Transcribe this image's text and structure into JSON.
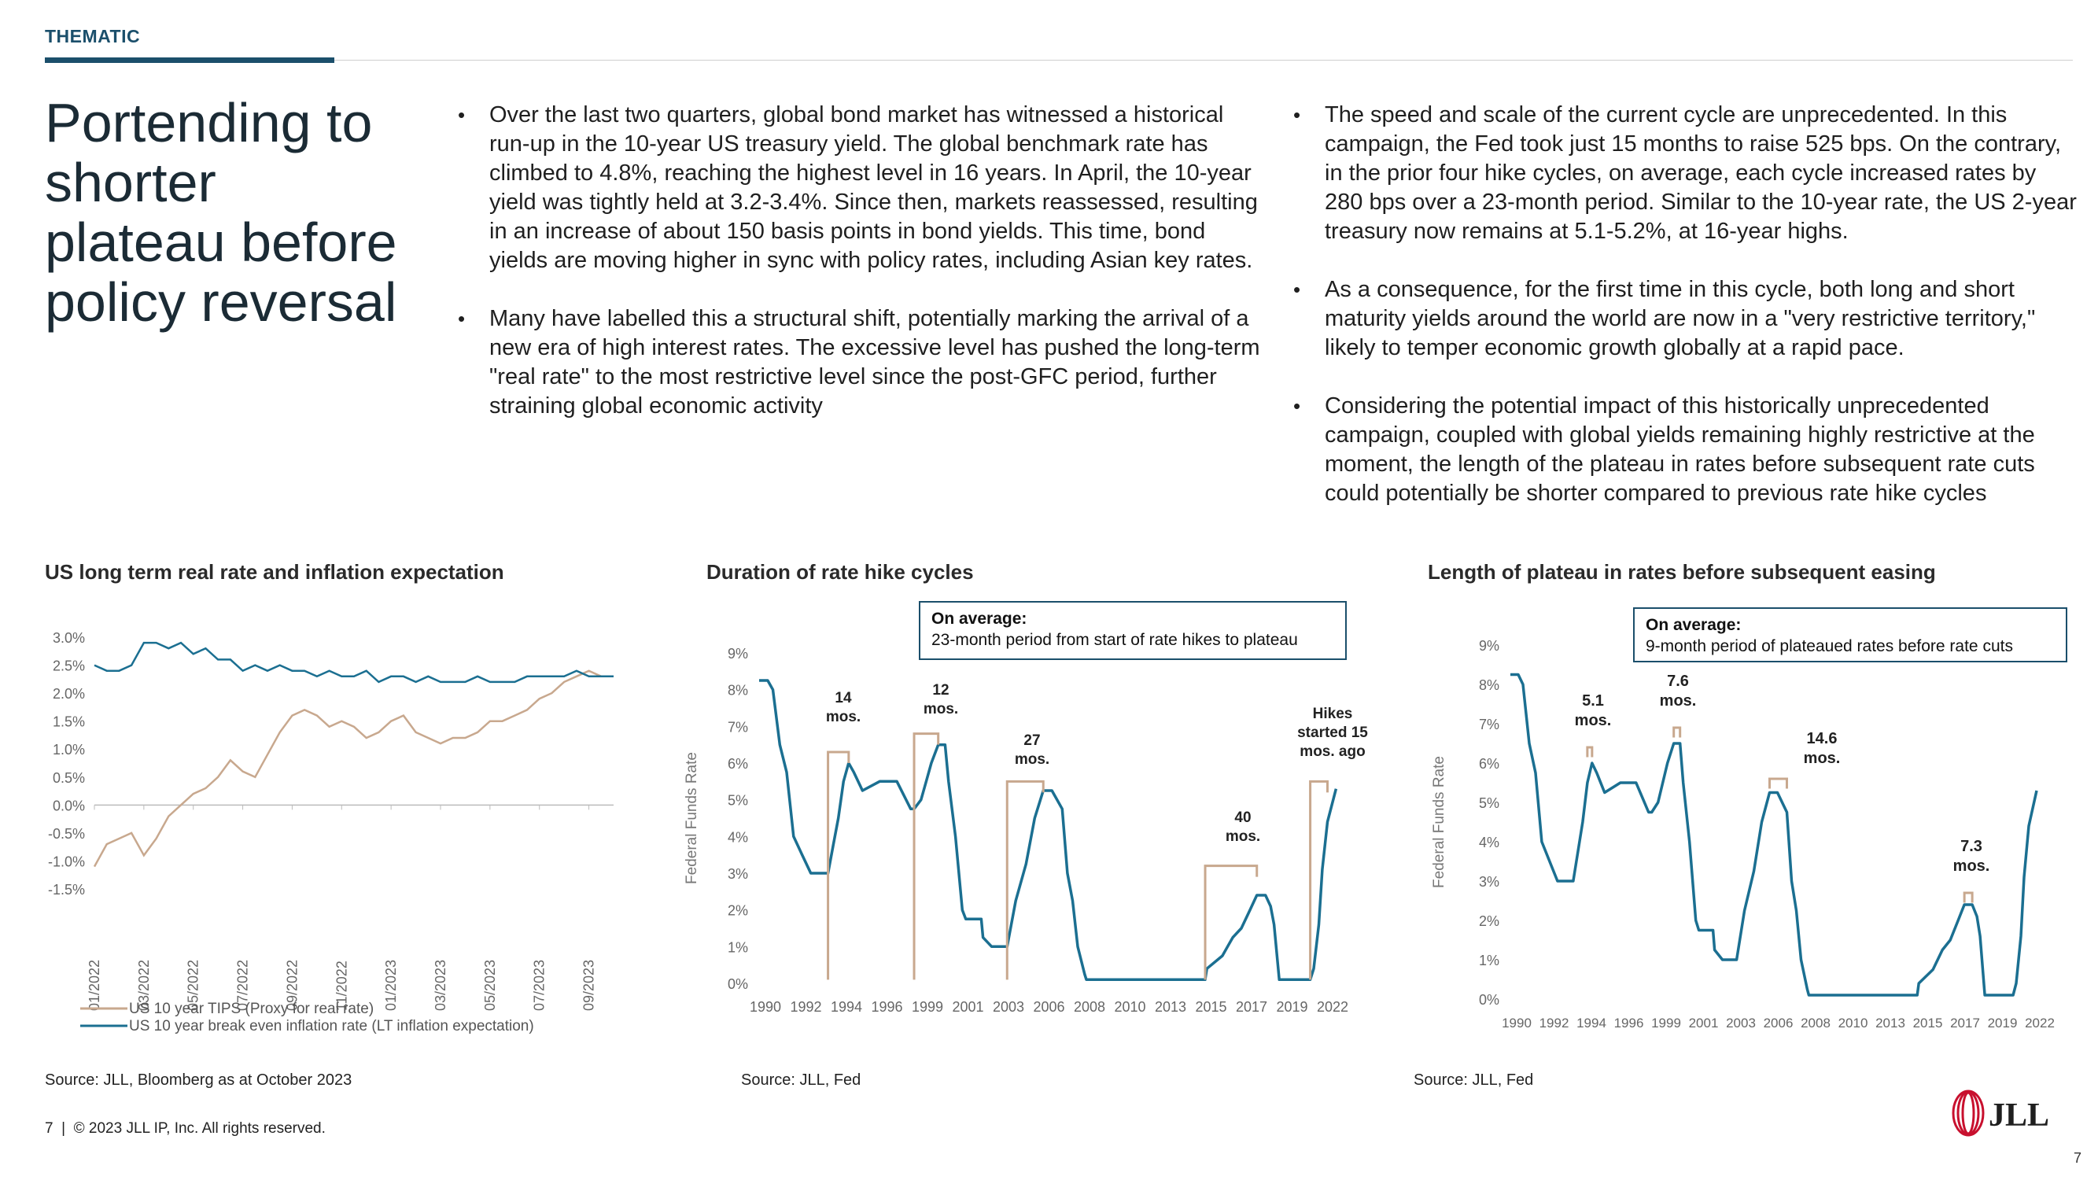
{
  "section_tag": "THEMATIC",
  "headline": "Portending to shorter plateau before policy reversal",
  "bullets_left": [
    "Over the last two quarters, global bond market has witnessed a historical run-up in the 10-year US treasury yield. The global benchmark rate has climbed to 4.8%, reaching the highest level in 16 years. In April, the 10-year yield was tightly held at 3.2-3.4%. Since then, markets reassessed, resulting in an increase of about 150 basis points in bond yields. This time, bond yields are moving higher in sync with policy rates, including Asian key rates.",
    "Many have labelled this a structural shift, potentially marking the arrival of a new era of high interest rates. The excessive level has pushed the long-term \"real rate\" to the most restrictive level since the post-GFC period, further straining global economic activity"
  ],
  "bullets_right": [
    "The speed and scale of the current cycle are unprecedented. In this campaign, the Fed took just 15 months to raise 525 bps. On the contrary, in the prior four hike cycles, on average, each cycle increased rates by 280 bps over a 23-month period. Similar to the 10-year rate, the US 2-year treasury now remains at 5.1-5.2%, at 16-year highs.",
    "As a consequence, for the first time in this cycle, both long and short maturity yields around the world are now in a \"very restrictive territory,\" likely to temper economic growth globally at a rapid pace.",
    "Considering the potential impact of this historically unprecedented campaign, coupled with global yields remaining highly restrictive at the moment, the length of the plateau in rates before subsequent rate cuts could potentially be shorter compared to previous rate hike cycles"
  ],
  "colors": {
    "navy": "#1b4f6b",
    "teal": "#1b6f91",
    "tan": "#c8a88e",
    "red": "#c8102e"
  },
  "chart_data": [
    {
      "type": "line",
      "title": "US long term real rate and inflation expectation",
      "x_ticks": [
        "01/2022",
        "03/2022",
        "05/2022",
        "07/2022",
        "09/2022",
        "11/2022",
        "01/2023",
        "03/2023",
        "05/2023",
        "07/2023",
        "09/2023"
      ],
      "y_ticks": [
        "3.0%",
        "2.5%",
        "2.0%",
        "1.5%",
        "1.0%",
        "0.5%",
        "0.0%",
        "-0.5%",
        "-1.0%",
        "-1.5%"
      ],
      "ylim": [
        -1.5,
        3.0
      ],
      "series": [
        {
          "name": "US 10 year TIPS (Proxy for real rate)",
          "color": "#c8a88e",
          "x": [
            0,
            0.5,
            1,
            1.5,
            2,
            2.5,
            3,
            3.5,
            4,
            4.5,
            5,
            5.5,
            6,
            6.5,
            7,
            7.5,
            8,
            8.5,
            9,
            9.5,
            10,
            10.5,
            11,
            11.5,
            12,
            12.5,
            13,
            13.5,
            14,
            14.5,
            15,
            15.5,
            16,
            16.5,
            17,
            17.5,
            18,
            18.5,
            19,
            19.5,
            20,
            20.5,
            21
          ],
          "values": [
            -1.1,
            -0.7,
            -0.6,
            -0.5,
            -0.9,
            -0.6,
            -0.2,
            0.0,
            0.2,
            0.3,
            0.5,
            0.8,
            0.6,
            0.5,
            0.9,
            1.3,
            1.6,
            1.7,
            1.6,
            1.4,
            1.5,
            1.4,
            1.2,
            1.3,
            1.5,
            1.6,
            1.3,
            1.2,
            1.1,
            1.2,
            1.2,
            1.3,
            1.5,
            1.5,
            1.6,
            1.7,
            1.9,
            2.0,
            2.2,
            2.3,
            2.4,
            2.3,
            2.3
          ]
        },
        {
          "name": "US 10 year break even inflation rate (LT inflation expectation)",
          "color": "#1b6f91",
          "x": [
            0,
            0.5,
            1,
            1.5,
            2,
            2.5,
            3,
            3.5,
            4,
            4.5,
            5,
            5.5,
            6,
            6.5,
            7,
            7.5,
            8,
            8.5,
            9,
            9.5,
            10,
            10.5,
            11,
            11.5,
            12,
            12.5,
            13,
            13.5,
            14,
            14.5,
            15,
            15.5,
            16,
            16.5,
            17,
            17.5,
            18,
            18.5,
            19,
            19.5,
            20,
            20.5,
            21
          ],
          "values": [
            2.5,
            2.4,
            2.4,
            2.5,
            2.9,
            2.9,
            2.8,
            2.9,
            2.7,
            2.8,
            2.6,
            2.6,
            2.4,
            2.5,
            2.4,
            2.5,
            2.4,
            2.4,
            2.3,
            2.4,
            2.3,
            2.3,
            2.4,
            2.2,
            2.3,
            2.3,
            2.2,
            2.3,
            2.2,
            2.2,
            2.2,
            2.3,
            2.2,
            2.2,
            2.2,
            2.3,
            2.3,
            2.3,
            2.3,
            2.4,
            2.3,
            2.3,
            2.3
          ]
        }
      ]
    },
    {
      "type": "line",
      "title": "Duration of rate hike cycles",
      "ylabel": "Federal Funds Rate",
      "x_ticks": [
        "1990",
        "1992",
        "1994",
        "1996",
        "1999",
        "2001",
        "2003",
        "2006",
        "2008",
        "2010",
        "2013",
        "2015",
        "2017",
        "2019",
        "2022"
      ],
      "y_ticks": [
        "9%",
        "8%",
        "7%",
        "6%",
        "5%",
        "4%",
        "3%",
        "2%",
        "1%",
        "0%"
      ],
      "ylim": [
        0,
        9
      ],
      "xlim": [
        1990,
        2023.8
      ],
      "series": [
        {
          "name": "",
          "color": "#1b6f91",
          "x": [
            1990,
            1990.5,
            1990.8,
            1991.2,
            1991.6,
            1992.0,
            1992.5,
            1993.0,
            1994.0,
            1994.3,
            1994.6,
            1994.9,
            1995.2,
            1995.5,
            1996.0,
            1997.0,
            1998.0,
            1998.8,
            1999.0,
            1999.4,
            1999.7,
            2000.0,
            2000.4,
            2000.8,
            2001.0,
            2001.4,
            2001.8,
            2002.0,
            2002.9,
            2003.0,
            2003.5,
            2004.4,
            2004.9,
            2005.5,
            2006.0,
            2006.5,
            2007.0,
            2007.6,
            2007.9,
            2008.2,
            2008.5,
            2008.9,
            2009.0,
            2015.9,
            2016.0,
            2016.9,
            2017.2,
            2017.5,
            2018.0,
            2018.5,
            2018.9,
            2019.4,
            2019.7,
            2019.9,
            2020.2,
            2022.0,
            2022.2,
            2022.5,
            2022.7,
            2023.0,
            2023.5
          ],
          "values": [
            8.25,
            8.25,
            8.0,
            6.5,
            5.75,
            4.0,
            3.5,
            3.0,
            3.0,
            3.75,
            4.5,
            5.5,
            6.0,
            5.75,
            5.25,
            5.5,
            5.5,
            4.75,
            4.75,
            5.0,
            5.5,
            6.0,
            6.5,
            6.5,
            5.5,
            4.0,
            2.0,
            1.75,
            1.75,
            1.25,
            1.0,
            1.0,
            2.25,
            3.25,
            4.5,
            5.25,
            5.25,
            4.75,
            3.0,
            2.25,
            1.0,
            0.25,
            0.1,
            0.1,
            0.4,
            0.75,
            1.0,
            1.25,
            1.5,
            2.0,
            2.4,
            2.4,
            2.1,
            1.6,
            0.1,
            0.1,
            0.4,
            1.6,
            3.1,
            4.4,
            5.3
          ]
        }
      ],
      "annotations": [
        "14 mos.",
        "12 mos.",
        "27 mos.",
        "40 mos.",
        "Hikes started 15 mos. ago"
      ],
      "callout": {
        "title": "On average:",
        "text": "23-month period from start of rate hikes to plateau"
      }
    },
    {
      "type": "line",
      "title": "Length of plateau in rates before subsequent easing",
      "ylabel": "Federal Funds Rate",
      "x_ticks": [
        "1990",
        "1992",
        "1994",
        "1996",
        "1999",
        "2001",
        "2003",
        "2006",
        "2008",
        "2010",
        "2013",
        "2015",
        "2017",
        "2019",
        "2022"
      ],
      "y_ticks": [
        "9%",
        "8%",
        "7%",
        "6%",
        "5%",
        "4%",
        "3%",
        "2%",
        "1%",
        "0%"
      ],
      "ylim": [
        0,
        9
      ],
      "xlim": [
        1990,
        2023.8
      ],
      "series": [
        {
          "name": "",
          "color": "#1b6f91",
          "x": [
            1990,
            1990.5,
            1990.8,
            1991.2,
            1991.6,
            1992.0,
            1992.5,
            1993.0,
            1994.0,
            1994.3,
            1994.6,
            1994.9,
            1995.2,
            1995.5,
            1996.0,
            1997.0,
            1998.0,
            1998.8,
            1999.0,
            1999.4,
            1999.7,
            2000.0,
            2000.4,
            2000.8,
            2001.0,
            2001.4,
            2001.8,
            2002.0,
            2002.9,
            2003.0,
            2003.5,
            2004.4,
            2004.9,
            2005.5,
            2006.0,
            2006.5,
            2007.0,
            2007.6,
            2007.9,
            2008.2,
            2008.5,
            2008.9,
            2009.0,
            2015.9,
            2016.0,
            2016.9,
            2017.2,
            2017.5,
            2018.0,
            2018.5,
            2018.9,
            2019.4,
            2019.7,
            2019.9,
            2020.2,
            2022.0,
            2022.2,
            2022.5,
            2022.7,
            2023.0,
            2023.5
          ],
          "values": [
            8.25,
            8.25,
            8.0,
            6.5,
            5.75,
            4.0,
            3.5,
            3.0,
            3.0,
            3.75,
            4.5,
            5.5,
            6.0,
            5.75,
            5.25,
            5.5,
            5.5,
            4.75,
            4.75,
            5.0,
            5.5,
            6.0,
            6.5,
            6.5,
            5.5,
            4.0,
            2.0,
            1.75,
            1.75,
            1.25,
            1.0,
            1.0,
            2.25,
            3.25,
            4.5,
            5.25,
            5.25,
            4.75,
            3.0,
            2.25,
            1.0,
            0.25,
            0.1,
            0.1,
            0.4,
            0.75,
            1.0,
            1.25,
            1.5,
            2.0,
            2.4,
            2.4,
            2.1,
            1.6,
            0.1,
            0.1,
            0.4,
            1.6,
            3.1,
            4.4,
            5.3
          ]
        }
      ],
      "annotations": [
        "5.1 mos.",
        "7.6 mos.",
        "14.6 mos.",
        "7.3 mos."
      ],
      "callout": {
        "title": "On average:",
        "text": "9-month period of plateaued rates before rate cuts"
      }
    }
  ],
  "sources": [
    "Source: JLL, Bloomberg as at October 2023",
    "Source: JLL, Fed",
    "Source: JLL, Fed"
  ],
  "footer": "7  |  © 2023 JLL IP, Inc. All rights reserved.",
  "logo_text": "JLL",
  "page_number": "7"
}
